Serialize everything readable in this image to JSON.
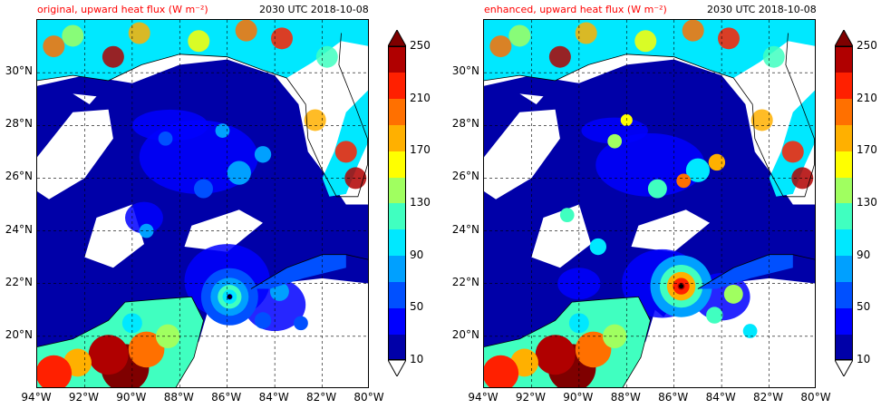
{
  "panels": [
    {
      "id": "left",
      "title": "original, upward heat flux (W m⁻²)",
      "time": "2030 UTC 2018-10-08",
      "lat_labels": [
        "30°N",
        "28°N",
        "26°N",
        "24°N",
        "22°N",
        "20°N"
      ],
      "lon_labels": [
        "94°W",
        "92°W",
        "90°W",
        "88°W",
        "86°W",
        "84°W",
        "82°W",
        "80°W"
      ]
    },
    {
      "id": "right",
      "title": "enhanced, upward heat flux (W m⁻²)",
      "time": "2030 UTC 2018-10-08",
      "lat_labels": [
        "30°N",
        "28°N",
        "26°N",
        "24°N",
        "22°N",
        "20°N"
      ],
      "lon_labels": [
        "94°W",
        "92°W",
        "90°W",
        "88°W",
        "86°W",
        "84°W",
        "82°W",
        "80°W"
      ]
    }
  ],
  "colorbar": {
    "labels": [
      "250",
      "210",
      "170",
      "130",
      "90",
      "50",
      "10"
    ],
    "levels": [
      10,
      30,
      50,
      70,
      90,
      110,
      130,
      150,
      170,
      190,
      210,
      230,
      250
    ],
    "colors": [
      "#0000a8",
      "#0000ff",
      "#0050ff",
      "#00a0ff",
      "#00e8ff",
      "#40ffc0",
      "#a0ff60",
      "#ffff00",
      "#ffb000",
      "#ff7000",
      "#ff2000",
      "#b00000"
    ],
    "over_color": "#7f0000",
    "under_color": "#ffffff"
  },
  "map": {
    "lat_range": [
      18,
      32
    ],
    "lon_range": [
      -94,
      -80
    ],
    "land_color": "#ffffff",
    "grid": "dashed"
  }
}
